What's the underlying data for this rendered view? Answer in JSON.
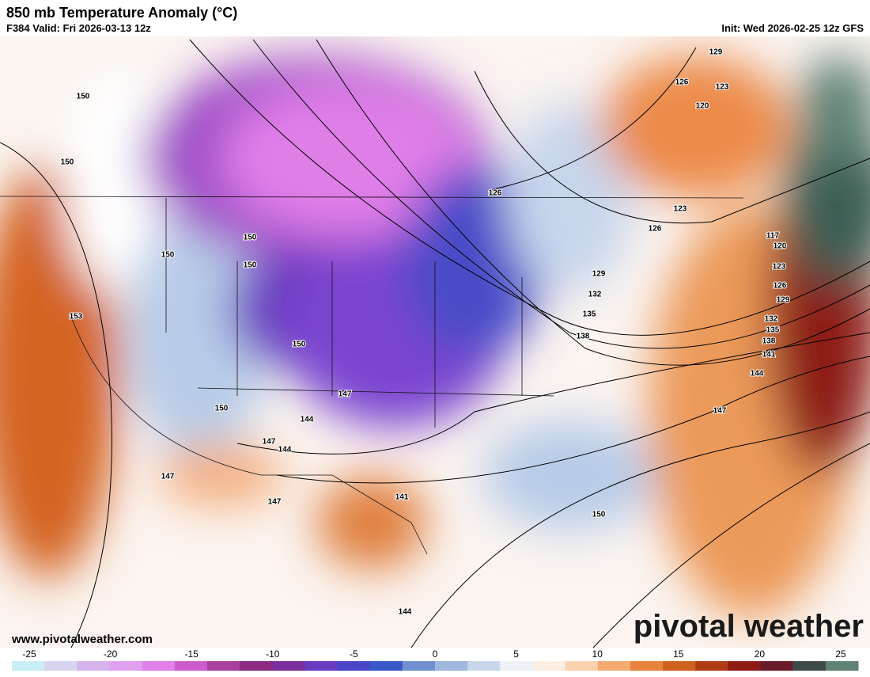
{
  "header": {
    "title": "850 mb Temperature Anomaly (°C)",
    "valid": "F384 Valid: Fri 2026-03-13 12z",
    "init": "Init: Wed 2026-02-25 12z GFS"
  },
  "contour_labels": [
    150,
    150,
    150,
    150,
    150,
    153,
    150,
    150,
    147,
    144,
    147,
    144,
    147,
    147,
    141,
    144,
    150,
    138,
    135,
    132,
    129,
    126,
    123,
    126,
    129,
    126,
    123,
    120,
    117,
    120,
    123,
    126,
    129,
    132,
    135,
    138,
    141,
    144,
    147
  ],
  "footer": {
    "website": "www.pivotalweather.com",
    "logo": "pivotal weather"
  },
  "colorbar": {
    "ticks": [
      -25,
      -20,
      -15,
      -10,
      -5,
      0,
      5,
      10,
      15,
      20,
      25
    ],
    "colors": [
      "#c8eef6",
      "#d8d4f0",
      "#d4b4ea",
      "#e0a0f0",
      "#e080e8",
      "#cc5ccc",
      "#a8409c",
      "#8a2a80",
      "#7a2e9a",
      "#6a3cc0",
      "#4a44c8",
      "#3a58c8",
      "#7090d0",
      "#a0b8de",
      "#c8d6ec",
      "#eef2f8",
      "#fdeee2",
      "#fbd2b0",
      "#f4aa70",
      "#e6843e",
      "#d06020",
      "#b03c14",
      "#8c1c14",
      "#6a1c2a",
      "#3e4a4a",
      "#5e8274"
    ]
  }
}
